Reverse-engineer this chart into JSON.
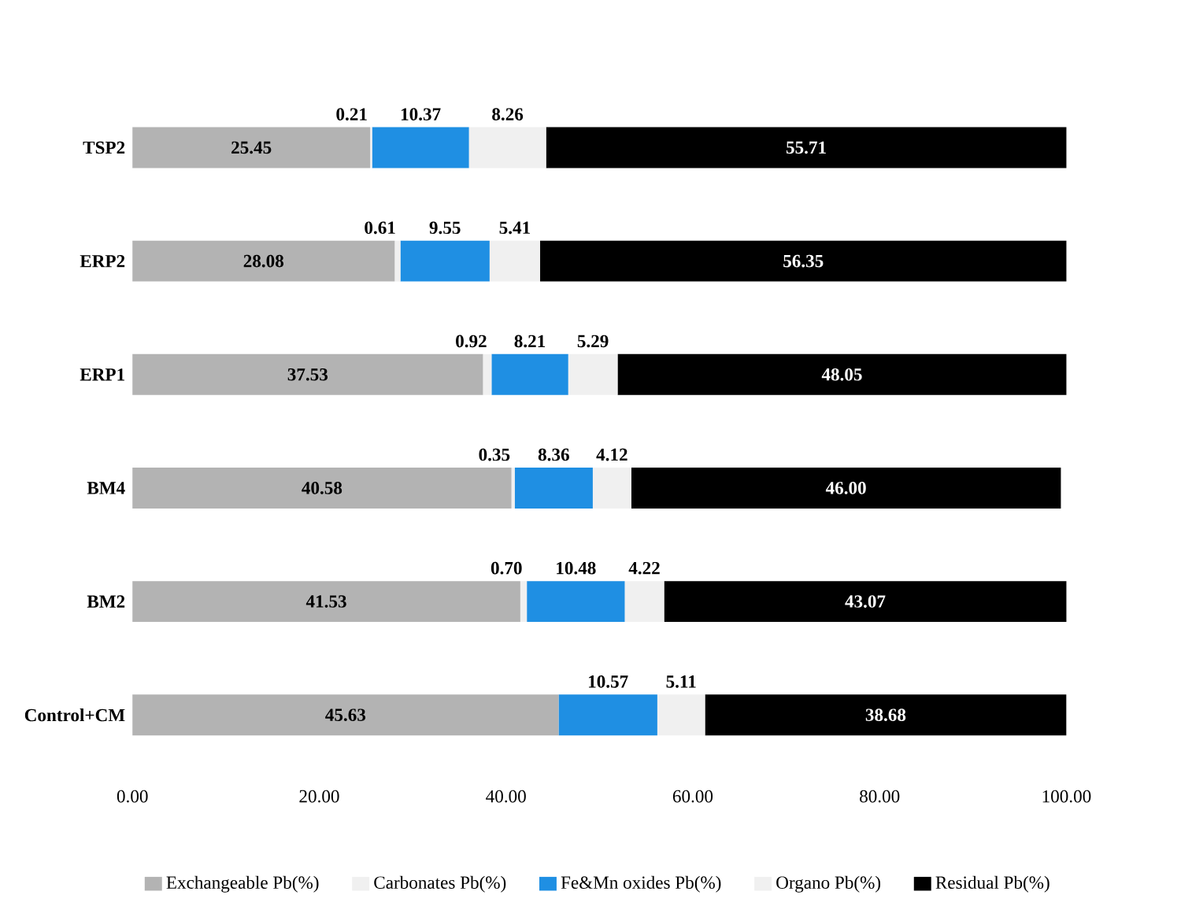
{
  "chart_data": {
    "type": "bar",
    "orientation": "horizontal",
    "stacked": true,
    "categories": [
      "TSP2",
      "ERP2",
      "ERP1",
      "BM4",
      "BM2",
      "Control+CM"
    ],
    "series": [
      {
        "name": "Exchangeable Pb(%)",
        "color": "#b3b3b3",
        "values": [
          25.45,
          28.08,
          37.53,
          40.58,
          41.53,
          45.63
        ],
        "value_labels": [
          "25.45",
          "28.08",
          "37.53",
          "40.58",
          "41.53",
          "45.63"
        ]
      },
      {
        "name": "Carbonates Pb(%)",
        "color": "#f0f0f0",
        "values": [
          0.21,
          0.61,
          0.92,
          0.35,
          0.7,
          0
        ],
        "value_labels": [
          "0.21",
          "0.61",
          "0.92",
          "0.35",
          "0.70",
          null
        ]
      },
      {
        "name": "Fe&Mn oxides Pb(%)",
        "color": "#1f8fe3",
        "values": [
          10.37,
          9.55,
          8.21,
          8.36,
          10.48,
          10.57
        ],
        "value_labels": [
          "10.37",
          "9.55",
          "8.21",
          "8.36",
          "10.48",
          "10.57"
        ]
      },
      {
        "name": "Organo Pb(%)",
        "color": "#f0f0f0",
        "values": [
          8.26,
          5.41,
          5.29,
          4.12,
          4.22,
          5.11
        ],
        "value_labels": [
          "8.26",
          "5.41",
          "5.29",
          "4.12",
          "4.22",
          "5.11"
        ]
      },
      {
        "name": "Residual Pb(%)",
        "color": "#000000",
        "values": [
          55.71,
          56.35,
          48.05,
          46.0,
          43.07,
          38.68
        ],
        "value_labels": [
          "55.71",
          "56.35",
          "48.05",
          "46.00",
          "43.07",
          "38.68"
        ]
      }
    ],
    "xlim": [
      0,
      100
    ],
    "xticks": [
      {
        "value": 0,
        "label": "0.00"
      },
      {
        "value": 20,
        "label": "20.00"
      },
      {
        "value": 40,
        "label": "40.00"
      },
      {
        "value": 60,
        "label": "60.00"
      },
      {
        "value": 80,
        "label": "80.00"
      },
      {
        "value": 100,
        "label": "100.00"
      }
    ],
    "legend": "bottom",
    "grid": false
  }
}
